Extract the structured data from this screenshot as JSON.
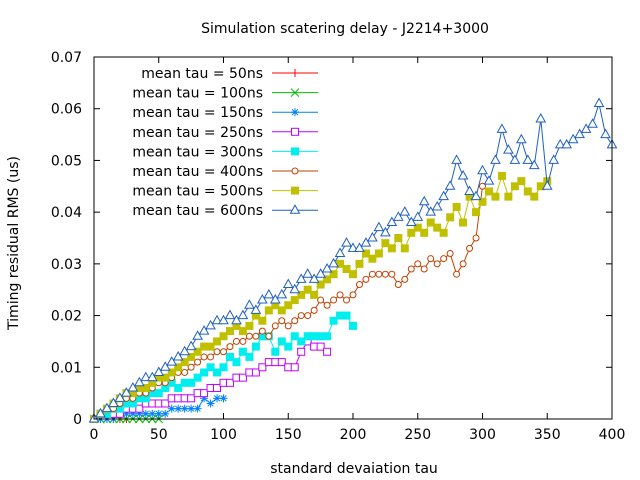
{
  "chart_data": {
    "type": "line",
    "title": "Simulation scatering delay - J2214+3000",
    "xlabel": "standard devaiation tau",
    "ylabel": "Timing residual RMS (us)",
    "xlim": [
      0,
      400
    ],
    "ylim": [
      0,
      0.07
    ],
    "x_ticks": [
      "0",
      "50",
      "100",
      "150",
      "200",
      "250",
      "300",
      "350",
      "400"
    ],
    "y_ticks": [
      "0",
      "0.01",
      "0.02",
      "0.03",
      "0.04",
      "0.05",
      "0.06",
      "0.07"
    ],
    "grid": false,
    "legend_position": "top-left",
    "series": [
      {
        "name": "mean tau = 50ns",
        "color": "#ff0000",
        "marker": "plus",
        "x": [
          0,
          5,
          10,
          15,
          20,
          25
        ],
        "y": [
          0,
          0,
          0,
          0,
          0,
          0
        ]
      },
      {
        "name": "mean tau = 100ns",
        "color": "#00c000",
        "marker": "cross",
        "x": [
          0,
          5,
          10,
          15,
          20,
          25,
          30,
          35,
          40,
          45,
          50
        ],
        "y": [
          0,
          0,
          0,
          0,
          0,
          0,
          0,
          0,
          0,
          0,
          0
        ]
      },
      {
        "name": "mean tau = 150ns",
        "color": "#0080ff",
        "marker": "star",
        "x": [
          0,
          5,
          10,
          15,
          20,
          25,
          30,
          35,
          40,
          45,
          50,
          55,
          60,
          65,
          70,
          75,
          80,
          85,
          90,
          95,
          100
        ],
        "y": [
          0,
          0,
          0,
          0,
          0.001,
          0.001,
          0.001,
          0.001,
          0.001,
          0.001,
          0.001,
          0.001,
          0.002,
          0.002,
          0.002,
          0.002,
          0.002,
          0.004,
          0.003,
          0.004,
          0.004
        ]
      },
      {
        "name": "mean tau = 250ns",
        "color": "#c000ff",
        "marker": "square-open",
        "x": [
          0,
          5,
          10,
          15,
          20,
          25,
          30,
          35,
          40,
          45,
          50,
          55,
          60,
          65,
          70,
          75,
          80,
          85,
          90,
          95,
          100,
          105,
          110,
          115,
          120,
          125,
          130,
          135,
          140,
          145,
          150,
          155,
          160,
          165,
          170,
          175,
          180
        ],
        "y": [
          0,
          0.001,
          0.001,
          0.001,
          0.001,
          0.002,
          0.002,
          0.002,
          0.003,
          0.003,
          0.003,
          0.003,
          0.004,
          0.004,
          0.004,
          0.004,
          0.005,
          0.005,
          0.006,
          0.006,
          0.007,
          0.007,
          0.008,
          0.008,
          0.009,
          0.009,
          0.01,
          0.011,
          0.011,
          0.011,
          0.01,
          0.01,
          0.013,
          0.015,
          0.014,
          0.014,
          0.013
        ]
      },
      {
        "name": "mean tau = 300ns",
        "color": "#00eeee",
        "marker": "square-filled",
        "x": [
          0,
          5,
          10,
          15,
          20,
          25,
          30,
          35,
          40,
          45,
          50,
          55,
          60,
          65,
          70,
          75,
          80,
          85,
          90,
          95,
          100,
          105,
          110,
          115,
          120,
          125,
          130,
          135,
          140,
          145,
          150,
          155,
          160,
          165,
          170,
          175,
          180,
          185,
          190,
          195,
          200
        ],
        "y": [
          0,
          0.001,
          0.001,
          0.002,
          0.002,
          0.003,
          0.003,
          0.004,
          0.004,
          0.005,
          0.005,
          0.006,
          0.007,
          0.006,
          0.007,
          0.007,
          0.008,
          0.009,
          0.01,
          0.009,
          0.01,
          0.012,
          0.011,
          0.013,
          0.012,
          0.014,
          0.016,
          0.016,
          0.013,
          0.015,
          0.014,
          0.016,
          0.015,
          0.016,
          0.016,
          0.016,
          0.016,
          0.019,
          0.02,
          0.02,
          0.018
        ]
      },
      {
        "name": "mean tau = 400ns",
        "color": "#c04000",
        "marker": "circle-open",
        "x": [
          0,
          5,
          10,
          15,
          20,
          25,
          30,
          35,
          40,
          45,
          50,
          55,
          60,
          65,
          70,
          75,
          80,
          85,
          90,
          95,
          100,
          105,
          110,
          115,
          120,
          125,
          130,
          135,
          140,
          145,
          150,
          155,
          160,
          165,
          170,
          175,
          180,
          185,
          190,
          195,
          200,
          205,
          210,
          215,
          220,
          225,
          230,
          235,
          240,
          245,
          250,
          255,
          260,
          265,
          270,
          275,
          280,
          285,
          290,
          295,
          300
        ],
        "y": [
          0,
          0.001,
          0.002,
          0.002,
          0.003,
          0.004,
          0.004,
          0.005,
          0.005,
          0.006,
          0.007,
          0.007,
          0.008,
          0.009,
          0.009,
          0.01,
          0.011,
          0.012,
          0.012,
          0.013,
          0.013,
          0.014,
          0.015,
          0.015,
          0.016,
          0.016,
          0.017,
          0.016,
          0.018,
          0.019,
          0.018,
          0.019,
          0.02,
          0.02,
          0.021,
          0.023,
          0.022,
          0.023,
          0.024,
          0.023,
          0.024,
          0.026,
          0.027,
          0.028,
          0.028,
          0.028,
          0.028,
          0.026,
          0.027,
          0.029,
          0.03,
          0.029,
          0.031,
          0.03,
          0.031,
          0.032,
          0.028,
          0.03,
          0.033,
          0.035,
          0.045
        ]
      },
      {
        "name": "mean tau = 500ns",
        "color": "#c0c000",
        "marker": "square-filled",
        "x": [
          0,
          5,
          10,
          15,
          20,
          25,
          30,
          35,
          40,
          45,
          50,
          55,
          60,
          65,
          70,
          75,
          80,
          85,
          90,
          95,
          100,
          105,
          110,
          115,
          120,
          125,
          130,
          135,
          140,
          145,
          150,
          155,
          160,
          165,
          170,
          175,
          180,
          185,
          190,
          195,
          200,
          205,
          210,
          215,
          220,
          225,
          230,
          235,
          240,
          245,
          250,
          255,
          260,
          265,
          270,
          275,
          280,
          285,
          290,
          295,
          300,
          305,
          310,
          315,
          320,
          325,
          330,
          335,
          340,
          345,
          350
        ],
        "y": [
          0,
          0.001,
          0.002,
          0.003,
          0.004,
          0.005,
          0.005,
          0.006,
          0.006,
          0.007,
          0.008,
          0.008,
          0.009,
          0.01,
          0.011,
          0.012,
          0.013,
          0.014,
          0.014,
          0.015,
          0.016,
          0.017,
          0.018,
          0.017,
          0.018,
          0.02,
          0.019,
          0.021,
          0.022,
          0.021,
          0.022,
          0.023,
          0.024,
          0.025,
          0.024,
          0.026,
          0.027,
          0.028,
          0.03,
          0.029,
          0.028,
          0.03,
          0.032,
          0.031,
          0.032,
          0.034,
          0.033,
          0.035,
          0.033,
          0.036,
          0.037,
          0.036,
          0.038,
          0.037,
          0.036,
          0.039,
          0.041,
          0.038,
          0.043,
          0.04,
          0.042,
          0.044,
          0.043,
          0.047,
          0.043,
          0.045,
          0.046,
          0.044,
          0.043,
          0.045,
          0.046
        ]
      },
      {
        "name": "mean tau = 600ns",
        "color": "#2060c0",
        "marker": "triangle-open",
        "x": [
          0,
          5,
          10,
          15,
          20,
          25,
          30,
          35,
          40,
          45,
          50,
          55,
          60,
          65,
          70,
          75,
          80,
          85,
          90,
          95,
          100,
          105,
          110,
          115,
          120,
          125,
          130,
          135,
          140,
          145,
          150,
          155,
          160,
          165,
          170,
          175,
          180,
          185,
          190,
          195,
          200,
          205,
          210,
          215,
          220,
          225,
          230,
          235,
          240,
          245,
          250,
          255,
          260,
          265,
          270,
          275,
          280,
          285,
          290,
          295,
          300,
          305,
          310,
          315,
          320,
          325,
          330,
          335,
          340,
          345,
          350,
          355,
          360,
          365,
          370,
          375,
          380,
          385,
          390,
          395,
          400
        ],
        "y": [
          0,
          0.001,
          0.002,
          0.003,
          0.004,
          0.005,
          0.006,
          0.007,
          0.008,
          0.008,
          0.009,
          0.01,
          0.011,
          0.012,
          0.013,
          0.014,
          0.016,
          0.017,
          0.018,
          0.019,
          0.019,
          0.02,
          0.019,
          0.02,
          0.022,
          0.021,
          0.023,
          0.024,
          0.023,
          0.024,
          0.026,
          0.025,
          0.027,
          0.028,
          0.027,
          0.028,
          0.029,
          0.03,
          0.032,
          0.034,
          0.033,
          0.033,
          0.034,
          0.035,
          0.037,
          0.036,
          0.038,
          0.039,
          0.04,
          0.038,
          0.039,
          0.042,
          0.04,
          0.041,
          0.043,
          0.045,
          0.05,
          0.047,
          0.044,
          0.043,
          0.048,
          0.046,
          0.05,
          0.056,
          0.052,
          0.05,
          0.054,
          0.05,
          0.049,
          0.058,
          0.045,
          0.05,
          0.053,
          0.053,
          0.054,
          0.055,
          0.056,
          0.057,
          0.061,
          0.055,
          0.053
        ]
      }
    ]
  }
}
